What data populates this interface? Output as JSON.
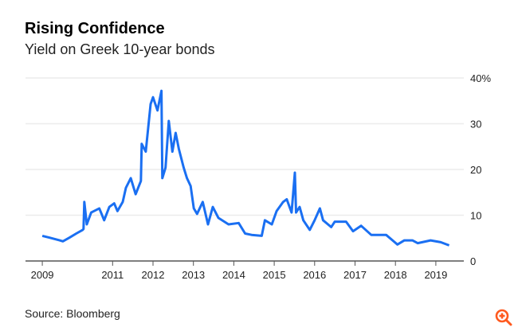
{
  "chart_data": {
    "type": "line",
    "title": "Rising Confidence",
    "subtitle": "Yield on Greek 10-year bonds",
    "source": "Source: Bloomberg",
    "xlabel": "",
    "ylabel": "",
    "ylim": [
      0,
      40
    ],
    "xlim": [
      2008.85,
      2019.9
    ],
    "yticks": [
      {
        "v": 0,
        "label": "0"
      },
      {
        "v": 10,
        "label": "10"
      },
      {
        "v": 20,
        "label": "20"
      },
      {
        "v": 30,
        "label": "30"
      },
      {
        "v": 40,
        "label": "40%"
      }
    ],
    "xticks": [
      {
        "v": 2009.26,
        "label": "2009"
      },
      {
        "v": 2011,
        "label": "2011"
      },
      {
        "v": 2012,
        "label": "2012"
      },
      {
        "v": 2013,
        "label": "2013"
      },
      {
        "v": 2014,
        "label": "2014"
      },
      {
        "v": 2015,
        "label": "2015"
      },
      {
        "v": 2016,
        "label": "2016"
      },
      {
        "v": 2017,
        "label": "2017"
      },
      {
        "v": 2018,
        "label": "2018"
      },
      {
        "v": 2019,
        "label": "2019"
      }
    ],
    "grid": true,
    "line_color": "#1a6ff2",
    "series": [
      {
        "name": "Greek 10-year bond yield",
        "x": [
          2009.26,
          2009.44,
          2009.69,
          2009.77,
          2009.93,
          2010.1,
          2010.26,
          2010.28,
          2010.3,
          2010.36,
          2010.47,
          2010.67,
          2010.79,
          2010.92,
          2011.04,
          2011.12,
          2011.25,
          2011.33,
          2011.45,
          2011.57,
          2011.7,
          2011.72,
          2011.82,
          2011.94,
          2012.0,
          2012.11,
          2012.21,
          2012.23,
          2012.31,
          2012.39,
          2012.48,
          2012.56,
          2012.64,
          2012.76,
          2012.84,
          2012.93,
          2013.01,
          2013.09,
          2013.23,
          2013.36,
          2013.48,
          2013.62,
          2013.87,
          2014.12,
          2014.28,
          2014.44,
          2014.69,
          2014.77,
          2014.94,
          2015.06,
          2015.22,
          2015.31,
          2015.43,
          2015.51,
          2015.54,
          2015.63,
          2015.72,
          2015.88,
          2016.0,
          2016.13,
          2016.21,
          2016.41,
          2016.5,
          2016.78,
          2016.95,
          2017.15,
          2017.4,
          2017.77,
          2017.97,
          2018.05,
          2018.22,
          2018.42,
          2018.55,
          2018.87,
          2019.12,
          2019.33
        ],
        "y": [
          5.5,
          5.1,
          4.5,
          4.3,
          5.1,
          6.0,
          6.8,
          7.0,
          12.9,
          8.0,
          10.6,
          11.5,
          8.9,
          11.8,
          12.6,
          10.9,
          12.9,
          16.0,
          18.1,
          14.6,
          17.5,
          25.6,
          23.9,
          34.3,
          35.8,
          32.9,
          37.2,
          18.1,
          20.4,
          30.6,
          23.9,
          28.0,
          24.5,
          20.4,
          18.1,
          16.4,
          11.5,
          10.3,
          12.9,
          8.0,
          11.8,
          9.4,
          8.0,
          8.3,
          6.0,
          5.7,
          5.5,
          8.9,
          8.0,
          10.9,
          12.9,
          13.5,
          10.6,
          19.3,
          10.6,
          11.8,
          8.9,
          6.8,
          8.9,
          11.5,
          8.9,
          7.4,
          8.6,
          8.6,
          6.5,
          7.7,
          5.7,
          5.7,
          4.2,
          3.6,
          4.5,
          4.5,
          3.9,
          4.5,
          4.1,
          3.4
        ]
      }
    ]
  },
  "icons": {
    "zoom": "zoom-in-icon",
    "zoom_color": "#ff5a1f"
  }
}
